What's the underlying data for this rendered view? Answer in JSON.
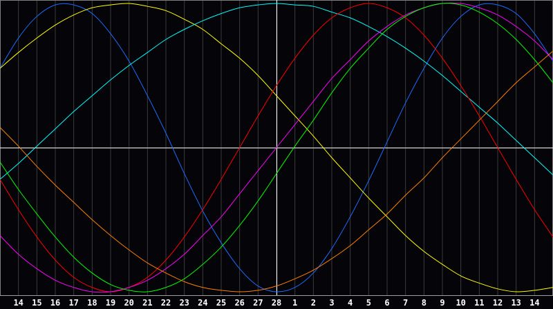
{
  "chart_data": {
    "type": "line",
    "title": "",
    "xlabel": "",
    "ylabel": "",
    "tick_labels": [
      "14",
      "15",
      "16",
      "17",
      "18",
      "19",
      "20",
      "21",
      "22",
      "23",
      "24",
      "25",
      "26",
      "27",
      "28",
      "1",
      "2",
      "3",
      "4",
      "5",
      "6",
      "7",
      "8",
      "9",
      "10",
      "11",
      "12",
      "13",
      "14"
    ],
    "x": [
      "13",
      "14",
      "15",
      "16",
      "17",
      "18",
      "19",
      "20",
      "21",
      "22",
      "23",
      "24",
      "25",
      "26",
      "27",
      "28",
      "1",
      "2",
      "3",
      "4",
      "5",
      "6",
      "7",
      "8",
      "9",
      "10",
      "11",
      "12",
      "13",
      "14",
      "15"
    ],
    "ylim": [
      -1,
      1
    ],
    "grid": true,
    "today_marker": "28",
    "series": [
      {
        "color": "#1a6cff",
        "values": [
          0.55,
          0.76,
          0.91,
          0.99,
          0.99,
          0.93,
          0.79,
          0.6,
          0.36,
          0.1,
          -0.18,
          -0.44,
          -0.66,
          -0.84,
          -0.96,
          -1.0,
          -0.97,
          -0.87,
          -0.7,
          -0.48,
          -0.23,
          0.04,
          0.31,
          0.55,
          0.76,
          0.91,
          0.99,
          0.99,
          0.93,
          0.79,
          0.6
        ]
      },
      {
        "color": "#ffff00",
        "values": [
          0.55,
          0.66,
          0.76,
          0.85,
          0.92,
          0.97,
          0.99,
          1.0,
          0.98,
          0.95,
          0.89,
          0.82,
          0.72,
          0.62,
          0.5,
          0.36,
          0.22,
          0.08,
          -0.07,
          -0.21,
          -0.35,
          -0.48,
          -0.61,
          -0.72,
          -0.81,
          -0.89,
          -0.94,
          -0.98,
          -1.0,
          -0.99,
          -0.97
        ]
      },
      {
        "color": "#00ffff",
        "values": [
          -0.22,
          -0.11,
          0.01,
          0.13,
          0.25,
          0.36,
          0.47,
          0.57,
          0.66,
          0.75,
          0.82,
          0.88,
          0.93,
          0.97,
          0.99,
          1.0,
          0.99,
          0.98,
          0.94,
          0.9,
          0.84,
          0.77,
          0.69,
          0.6,
          0.5,
          0.39,
          0.28,
          0.17,
          0.05,
          -0.07,
          -0.19
        ]
      },
      {
        "color": "#ff0000",
        "values": [
          -0.22,
          -0.43,
          -0.62,
          -0.78,
          -0.9,
          -0.97,
          -1.0,
          -0.97,
          -0.9,
          -0.78,
          -0.62,
          -0.43,
          -0.22,
          0.0,
          0.22,
          0.43,
          0.62,
          0.78,
          0.9,
          0.97,
          1.0,
          0.97,
          0.9,
          0.78,
          0.62,
          0.43,
          0.22,
          0.0,
          -0.22,
          -0.43,
          -0.62
        ]
      },
      {
        "color": "#ff00ff",
        "values": [
          -0.61,
          -0.74,
          -0.84,
          -0.92,
          -0.97,
          -1.0,
          -1.0,
          -0.97,
          -0.92,
          -0.84,
          -0.74,
          -0.61,
          -0.48,
          -0.32,
          -0.16,
          0.0,
          0.16,
          0.32,
          0.48,
          0.61,
          0.74,
          0.84,
          0.92,
          0.97,
          1.0,
          1.0,
          0.97,
          0.92,
          0.84,
          0.74,
          0.61
        ]
      },
      {
        "color": "#00ff00",
        "values": [
          -0.1,
          -0.29,
          -0.46,
          -0.62,
          -0.76,
          -0.87,
          -0.95,
          -0.99,
          -1.0,
          -0.97,
          -0.91,
          -0.81,
          -0.69,
          -0.54,
          -0.37,
          -0.18,
          0.01,
          0.19,
          0.38,
          0.55,
          0.69,
          0.82,
          0.91,
          0.97,
          1.0,
          0.99,
          0.94,
          0.86,
          0.75,
          0.61,
          0.45
        ]
      },
      {
        "color": "#ff8000",
        "values": [
          0.14,
          0.01,
          -0.13,
          -0.26,
          -0.38,
          -0.5,
          -0.61,
          -0.71,
          -0.8,
          -0.87,
          -0.93,
          -0.97,
          -0.99,
          -1.0,
          -0.99,
          -0.96,
          -0.91,
          -0.85,
          -0.77,
          -0.68,
          -0.57,
          -0.46,
          -0.33,
          -0.21,
          -0.07,
          0.06,
          0.19,
          0.32,
          0.45,
          0.56,
          0.67
        ]
      }
    ],
    "colors": {
      "background": "#050408",
      "grid": "#3c3c3c",
      "axis": "#a0a0a0",
      "crosshair": "#ffffff"
    }
  }
}
